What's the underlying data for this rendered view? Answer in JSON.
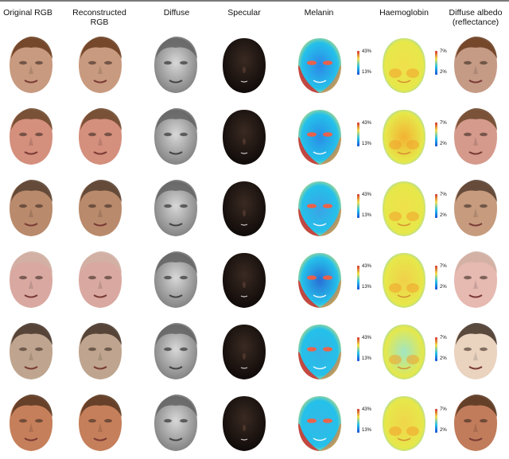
{
  "columns": [
    {
      "key": "original",
      "label": "Original RGB"
    },
    {
      "key": "reconstructed",
      "label": "Reconstructed RGB"
    },
    {
      "key": "diffuse",
      "label": "Diffuse"
    },
    {
      "key": "specular",
      "label": "Specular"
    },
    {
      "key": "melanin",
      "label": "Melanin"
    },
    {
      "key": "haemoglobin",
      "label": "Haemoglobin"
    },
    {
      "key": "albedo",
      "label": "Diffuse albedo (reflectance)"
    }
  ],
  "melanin_scale": {
    "max_label": "43%",
    "min_label": "13%"
  },
  "haemoglobin_scale": {
    "max_label": "7%",
    "min_label": "2%"
  },
  "colors": {
    "hair_dark": "#6b3f22",
    "diffuse_gray": "#a9a9a9",
    "specular_dark": "#120c0a",
    "melanin_blue": "#2e86e8",
    "melanin_red": "#d5312a",
    "haemo_yellow": "#f1e04a",
    "haemo_orange": "#f3a12b",
    "background": "#ffffff",
    "topline": "#7a7a7a"
  },
  "rows": [
    {
      "skin": "#c89a7f",
      "hair": "#6b3f22",
      "melanin_base": "#2e86e8",
      "haemo_base": "#f1e04a",
      "albedo_skin": "#c59b86"
    },
    {
      "skin": "#d48f7d",
      "hair": "#6f4a2f",
      "melanin_base": "#2a8de6",
      "haemo_base": "#f3b233",
      "albedo_skin": "#d59a8c"
    },
    {
      "skin": "#b98a6c",
      "hair": "#5b4333",
      "melanin_base": "#3ba3e6",
      "haemo_base": "#f0e14a",
      "albedo_skin": "#c69b7e"
    },
    {
      "skin": "#d9a9a1",
      "hair": "#d0b0a4",
      "melanin_base": "#2a6ed6",
      "haemo_base": "#f1d04a",
      "albedo_skin": "#e6b9b1"
    },
    {
      "skin": "#bfa58f",
      "hair": "#4a3a2f",
      "melanin_base": "#35b2e6",
      "haemo_base": "#a0e6c4",
      "albedo_skin": "#ead3bf"
    },
    {
      "skin": "#c57f5a",
      "hair": "#5b3a24",
      "melanin_base": "#35b7e6",
      "haemo_base": "#f0d54a",
      "albedo_skin": "#c17c5b"
    }
  ]
}
